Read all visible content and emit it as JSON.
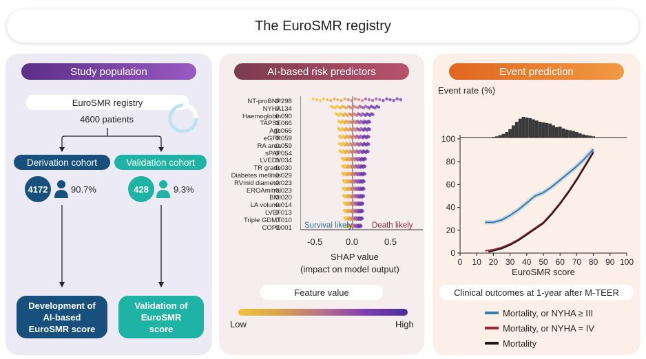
{
  "title": "The EuroSMR registry",
  "panel1": {
    "header": "Study population",
    "registry_label": "EuroSMR registry",
    "patients_label": "4600 patients",
    "derivation": {
      "label": "Derivation cohort",
      "count": "4172",
      "percent": "90.7%",
      "result": [
        "Development of",
        "AI-based",
        "EuroSMR score"
      ]
    },
    "validation": {
      "label": "Validation cohort",
      "count": "428",
      "percent": "9.3%",
      "result": [
        "Validation of",
        "EuroSMR",
        "score"
      ]
    },
    "colors": {
      "derivation": "#17507c",
      "validation": "#1fb3a6"
    }
  },
  "panel2": {
    "header": "AI-based risk predictors",
    "features": [
      {
        "name": "NT-proBNP",
        "value": "0.298"
      },
      {
        "name": "NYHA",
        "value": "0.134"
      },
      {
        "name": "Haemoglobin",
        "value": "0.090"
      },
      {
        "name": "TAPSE",
        "value": "0.066"
      },
      {
        "name": "Age",
        "value": "0.066"
      },
      {
        "name": "eGFR",
        "value": "0.059"
      },
      {
        "name": "RA area",
        "value": "0.059"
      },
      {
        "name": "sPAP",
        "value": "0.054"
      },
      {
        "name": "LVEDV",
        "value": "0.034"
      },
      {
        "name": "TR grade",
        "value": "0.030"
      },
      {
        "name": "Diabetes mellitus",
        "value": "0.029"
      },
      {
        "name": "RVmid diameter",
        "value": "0.023"
      },
      {
        "name": "EROAmitral",
        "value": "0.023"
      },
      {
        "name": "BMI",
        "value": "0.020"
      },
      {
        "name": "LA volume",
        "value": "0.014"
      },
      {
        "name": "LVEF",
        "value": "0.013"
      },
      {
        "name": "Triple GDMT",
        "value": "0.010"
      },
      {
        "name": "COPD",
        "value": "0.001"
      }
    ],
    "survival_label": "Survival likely",
    "death_label": "Death likely",
    "x_ticks": [
      "-0.5",
      "0.0",
      "0.5"
    ],
    "xlabel_line1": "SHAP value",
    "xlabel_line2": "(impact on model output)",
    "feature_value_label": "Feature value",
    "low_label": "Low",
    "high_label": "High"
  },
  "panel3": {
    "header": "Event prediction",
    "ylabel": "Event rate (%)",
    "xlabel": "EuroSMR score",
    "outcomes_title": "Clinical outcomes at 1-year after M-TEER",
    "legend": [
      {
        "label": "Mortality, or NYHA ≥ III",
        "color": "#2f7fb5"
      },
      {
        "label": "Mortality, or NYHA = IV",
        "color": "#a8232b"
      },
      {
        "label": "Mortality",
        "color": "#1a1a1a"
      }
    ]
  },
  "chart_data": {
    "type": "line",
    "xlabel": "EuroSMR score",
    "ylabel": "Event rate (%)",
    "xlim": [
      0,
      100
    ],
    "ylim": [
      0,
      100
    ],
    "x_ticks": [
      "0",
      "10",
      "20",
      "30",
      "40",
      "50",
      "60",
      "70",
      "80",
      "90",
      "100"
    ],
    "y_ticks": [
      "0",
      "20",
      "40",
      "60",
      "80",
      "100"
    ],
    "series": [
      {
        "name": "Mortality, or NYHA ≥ III",
        "x": [
          15,
          20,
          25,
          30,
          35,
          40,
          45,
          50,
          55,
          60,
          65,
          70,
          75,
          80
        ],
        "y": [
          27,
          27,
          29,
          33,
          38,
          44,
          50,
          53,
          58,
          64,
          70,
          76,
          83,
          91
        ]
      },
      {
        "name": "Mortality, or NYHA = IV",
        "x": [
          15,
          20,
          25,
          30,
          35,
          40,
          45,
          50,
          55,
          60,
          65,
          70,
          75,
          80
        ],
        "y": [
          2,
          3,
          5,
          8,
          12,
          17,
          22,
          27,
          35,
          44,
          54,
          65,
          77,
          89
        ]
      },
      {
        "name": "Mortality",
        "x": [
          17,
          20,
          25,
          30,
          35,
          40,
          45,
          50,
          55,
          60,
          65,
          70,
          75,
          80
        ],
        "y": [
          1,
          2,
          4,
          7,
          11,
          16,
          21,
          26,
          34,
          43,
          53,
          64,
          76,
          88
        ]
      }
    ],
    "histogram": {
      "x": [
        20,
        22,
        24,
        26,
        28,
        30,
        32,
        34,
        36,
        38,
        40,
        42,
        44,
        46,
        48,
        50,
        52,
        54,
        56,
        58,
        60,
        62,
        64,
        66,
        68,
        70,
        72,
        74,
        76,
        78,
        80
      ],
      "counts": [
        2,
        4,
        8,
        12,
        18,
        28,
        40,
        52,
        62,
        68,
        66,
        64,
        60,
        56,
        52,
        50,
        48,
        46,
        40,
        34,
        36,
        30,
        26,
        24,
        22,
        18,
        14,
        10,
        8,
        6,
        4
      ]
    }
  }
}
